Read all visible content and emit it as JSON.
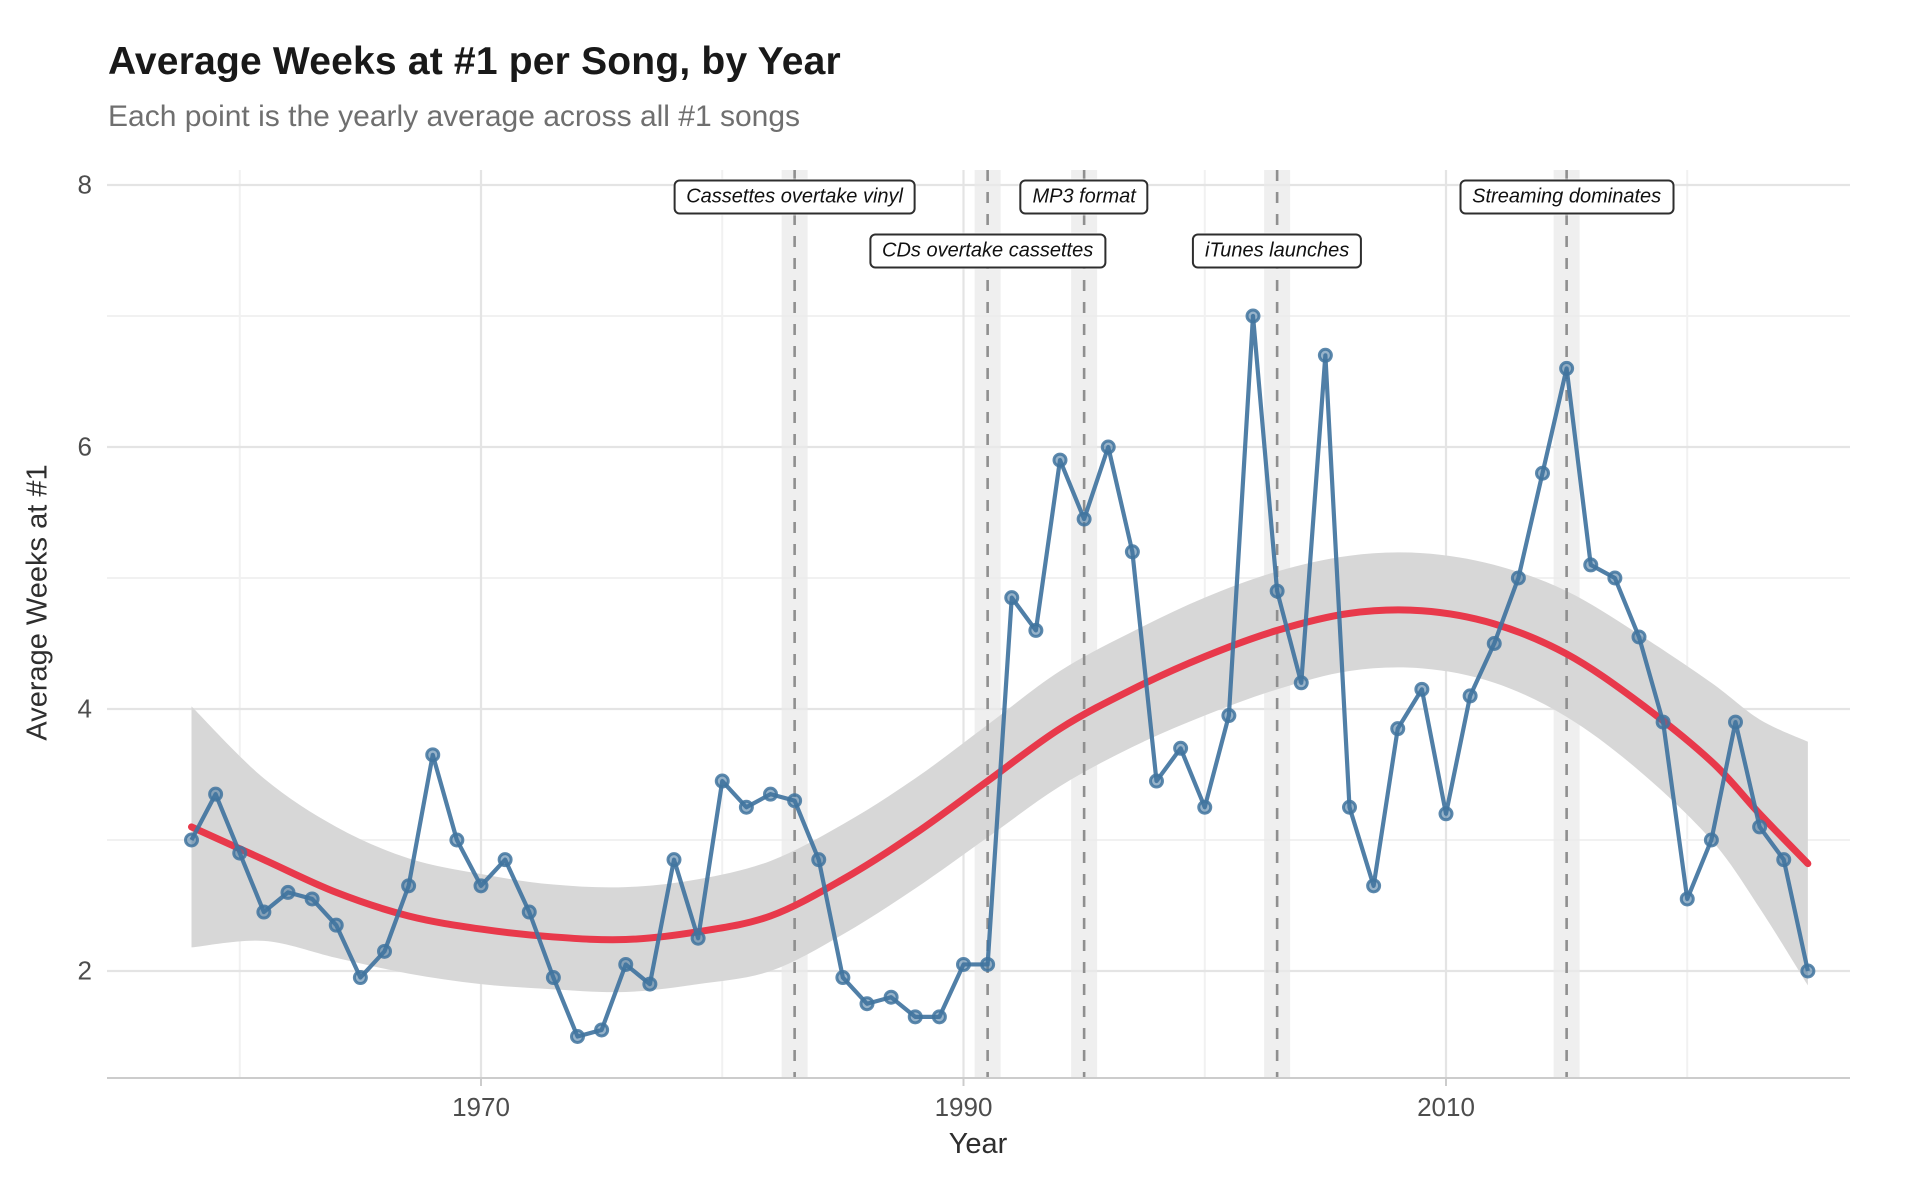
{
  "header": {
    "title": "Average Weeks at #1 per Song, by Year",
    "subtitle": "Each point is the yearly average across all #1 songs"
  },
  "axes": {
    "x": {
      "label": "Year",
      "ticks": [
        1970,
        1990,
        2010
      ],
      "minor_ticks": [
        1960,
        1980,
        2000,
        2020
      ]
    },
    "y": {
      "label": "Average Weeks at #1",
      "ticks": [
        2,
        4,
        6,
        8
      ],
      "minor_ticks": [
        3,
        5,
        7
      ]
    }
  },
  "events": [
    {
      "year": 1983,
      "label": "Cassettes overtake vinyl",
      "row": 1
    },
    {
      "year": 1991,
      "label": "CDs overtake cassettes",
      "row": 2
    },
    {
      "year": 1995,
      "label": "MP3 format",
      "row": 1
    },
    {
      "year": 2003,
      "label": "iTunes launches",
      "row": 2
    },
    {
      "year": 2015,
      "label": "Streaming dominates",
      "row": 1
    }
  ],
  "chart_data": {
    "type": "scatter",
    "title": "Average Weeks at #1 per Song, by Year",
    "subtitle": "Each point is the yearly average across all #1 songs",
    "xlabel": "Year",
    "ylabel": "Average Weeks at #1",
    "xlim": [
      1954.5,
      2026.7
    ],
    "ylim": [
      1.18,
      8.12
    ],
    "grid": "major and minor, light gray on white",
    "x": [
      1958,
      1959,
      1960,
      1961,
      1962,
      1963,
      1964,
      1965,
      1966,
      1967,
      1968,
      1969,
      1970,
      1971,
      1972,
      1973,
      1974,
      1975,
      1976,
      1977,
      1978,
      1979,
      1980,
      1981,
      1982,
      1983,
      1984,
      1985,
      1986,
      1987,
      1988,
      1989,
      1990,
      1991,
      1992,
      1993,
      1994,
      1995,
      1996,
      1997,
      1998,
      1999,
      2000,
      2001,
      2002,
      2003,
      2004,
      2005,
      2006,
      2007,
      2008,
      2009,
      2010,
      2011,
      2012,
      2013,
      2014,
      2015,
      2016,
      2017,
      2018,
      2019,
      2020,
      2021,
      2022,
      2023,
      2024,
      2025
    ],
    "values": [
      3.0,
      3.35,
      2.9,
      2.45,
      2.6,
      2.55,
      2.35,
      1.95,
      2.15,
      2.65,
      3.65,
      3.0,
      2.65,
      2.85,
      2.45,
      1.95,
      1.5,
      1.55,
      2.05,
      1.9,
      2.85,
      2.25,
      3.45,
      3.25,
      3.35,
      3.3,
      2.85,
      1.95,
      1.75,
      1.8,
      1.65,
      1.65,
      2.05,
      2.05,
      4.85,
      4.6,
      5.9,
      5.45,
      6.0,
      5.2,
      3.45,
      3.7,
      3.25,
      3.95,
      7.0,
      4.9,
      4.2,
      6.7,
      3.25,
      2.65,
      3.85,
      4.15,
      3.2,
      4.1,
      4.5,
      5.0,
      5.8,
      6.6,
      5.1,
      5.0,
      4.55,
      3.9,
      2.55,
      3.0,
      3.9,
      3.1,
      2.85,
      2.0
    ],
    "trend": {
      "name": "loess smooth with confidence band",
      "x": [
        1958,
        1961,
        1964,
        1967,
        1970,
        1973,
        1976,
        1979,
        1982,
        1985,
        1988,
        1991,
        1994,
        1997,
        2000,
        2003,
        2006,
        2009,
        2012,
        2015,
        2018,
        2021,
        2023,
        2025
      ],
      "y": [
        3.1,
        2.85,
        2.6,
        2.42,
        2.32,
        2.26,
        2.24,
        2.3,
        2.42,
        2.7,
        3.05,
        3.45,
        3.85,
        4.15,
        4.4,
        4.6,
        4.73,
        4.75,
        4.65,
        4.42,
        4.05,
        3.6,
        3.2,
        2.82
      ],
      "half_width": [
        0.92,
        0.62,
        0.5,
        0.44,
        0.42,
        0.4,
        0.4,
        0.4,
        0.42,
        0.42,
        0.42,
        0.43,
        0.44,
        0.44,
        0.45,
        0.45,
        0.44,
        0.44,
        0.45,
        0.48,
        0.52,
        0.6,
        0.72,
        0.93
      ]
    },
    "colors": {
      "point": "#41749f",
      "line": "#41749f",
      "trend": "#e8394b",
      "ribbon": "#d7d7d7",
      "event_line": "#8f8f8f",
      "event_band": "#e9e9e9",
      "grid_major": "#e4e4e4",
      "grid_minor": "#f1f1f1",
      "axis_line": "#cccccc",
      "tick_text": "#4d4d4d"
    },
    "legend": "none"
  }
}
